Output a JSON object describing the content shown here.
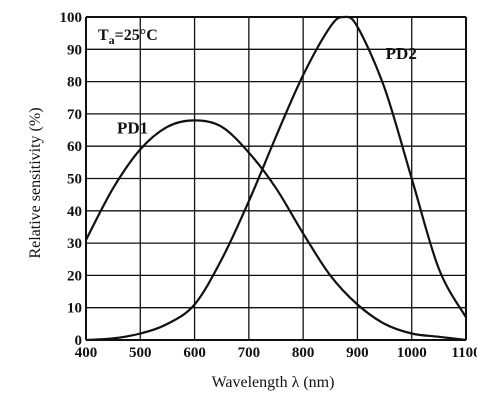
{
  "chart_data": {
    "type": "line",
    "xlabel": "Wavelength λ (nm)",
    "ylabel": "Relative sensitivity (%)",
    "annotation": {
      "base": "T",
      "subscript": "a",
      "rest": "=25°C"
    },
    "xlim": [
      400,
      1100
    ],
    "ylim": [
      0,
      100
    ],
    "x_ticks": [
      "400",
      "500",
      "600",
      "700",
      "800",
      "900",
      "1000",
      "1100"
    ],
    "y_ticks": [
      "0",
      "10",
      "20",
      "30",
      "40",
      "50",
      "60",
      "70",
      "80",
      "90",
      "100"
    ],
    "grid": true,
    "series": [
      {
        "name": "PD1",
        "x": [
          400,
          450,
          500,
          550,
          600,
          650,
          700,
          750,
          800,
          850,
          900,
          950,
          1000,
          1050,
          1100
        ],
        "y": [
          31,
          47,
          59,
          66,
          68,
          66,
          58,
          47,
          33,
          20,
          11,
          5,
          2,
          1,
          0
        ]
      },
      {
        "name": "PD2",
        "x": [
          400,
          450,
          500,
          550,
          600,
          650,
          700,
          750,
          800,
          850,
          875,
          900,
          950,
          1000,
          1050,
          1100
        ],
        "y": [
          0,
          0.5,
          2,
          5,
          11,
          25,
          43,
          63,
          82,
          97,
          100,
          97,
          78,
          50,
          22,
          7
        ]
      }
    ],
    "colors": {
      "line": "#111111",
      "grid": "#111111",
      "background": "#ffffff"
    }
  }
}
